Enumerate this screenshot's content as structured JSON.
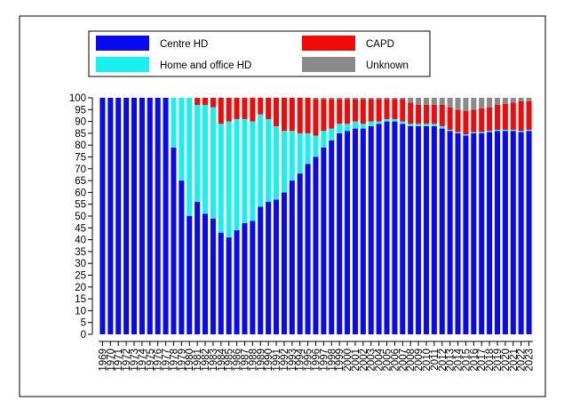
{
  "chart_data": {
    "type": "stacked_bar",
    "categories": [
      "1969",
      "1970",
      "1971",
      "1972",
      "1973",
      "1974",
      "1975",
      "1976",
      "1977",
      "1978",
      "1979",
      "1980",
      "1981",
      "1982",
      "1983",
      "1984",
      "1985",
      "1986",
      "1987",
      "1988",
      "1989",
      "1990",
      "1991",
      "1992",
      "1993",
      "1994",
      "1995",
      "1996",
      "1997",
      "1998",
      "1999",
      "2000",
      "2001",
      "2002",
      "2003",
      "2004",
      "2005",
      "2006",
      "2007",
      "2008",
      "2009",
      "2010",
      "2011",
      "2012",
      "2013",
      "2014",
      "2015",
      "2016",
      "2017",
      "2018",
      "2019",
      "2020",
      "2021",
      "2022",
      "2023"
    ],
    "series": [
      {
        "name": "Centre HD",
        "color": "#0a0af0",
        "values": [
          100,
          100,
          100,
          100,
          100,
          100,
          100,
          100,
          100,
          79,
          65,
          50,
          56,
          51,
          49,
          43,
          41,
          44,
          47,
          48,
          54,
          56,
          57,
          60,
          65,
          68,
          72,
          75,
          79,
          82,
          85,
          86,
          87,
          87,
          88,
          89,
          90,
          90,
          89,
          88,
          88,
          88,
          88,
          87,
          86,
          85,
          84,
          85,
          85,
          85.5,
          86,
          86,
          86,
          85.5,
          86
        ]
      },
      {
        "name": "Home and office HD",
        "color": "#19f0f0",
        "values": [
          0,
          0,
          0,
          0,
          0,
          0,
          0,
          0,
          0,
          21,
          35,
          50,
          41,
          46,
          47,
          46,
          49,
          47,
          44,
          42,
          39,
          35,
          31,
          26,
          21,
          17,
          13,
          9,
          7,
          5,
          4,
          3,
          3,
          2,
          2,
          1,
          1,
          1,
          1,
          1,
          1,
          1,
          1,
          1,
          0.5,
          0.5,
          0.5,
          0.5,
          0.5,
          0.5,
          0.5,
          0.5,
          0.5,
          0.5,
          0.5
        ]
      },
      {
        "name": "CAPD",
        "color": "#f00a0a",
        "values": [
          0,
          0,
          0,
          0,
          0,
          0,
          0,
          0,
          0,
          0,
          0,
          0,
          3,
          3,
          4,
          11,
          10,
          9,
          9,
          10,
          7,
          9,
          12,
          14,
          14,
          15,
          15,
          15.5,
          13.5,
          12.5,
          10.5,
          10.5,
          9.5,
          10.5,
          9.5,
          9.5,
          8.5,
          8.5,
          9.5,
          9,
          8,
          8,
          8,
          9,
          9.5,
          9.5,
          10,
          9.5,
          10,
          10,
          10.5,
          11,
          11.5,
          12.5,
          12
        ]
      },
      {
        "name": "Unknown",
        "color": "#8a8a8a",
        "values": [
          0,
          0,
          0,
          0,
          0,
          0,
          0,
          0,
          0,
          0,
          0,
          0,
          0,
          0,
          0,
          0,
          0,
          0,
          0,
          0,
          0,
          0,
          0,
          0,
          0,
          0,
          0,
          0.5,
          0.5,
          0.5,
          0.5,
          0.5,
          0.5,
          0.5,
          0.5,
          0.5,
          0.5,
          0.5,
          0.5,
          2,
          3,
          3,
          3,
          3,
          4,
          5,
          5.5,
          5,
          4.5,
          4,
          3,
          2.5,
          2,
          1.5,
          1.5
        ]
      }
    ],
    "ylim": [
      0,
      100
    ],
    "yticks": [
      0,
      5,
      10,
      15,
      20,
      25,
      30,
      35,
      40,
      45,
      50,
      55,
      60,
      65,
      70,
      75,
      80,
      85,
      90,
      95,
      100
    ],
    "legend": "top"
  }
}
